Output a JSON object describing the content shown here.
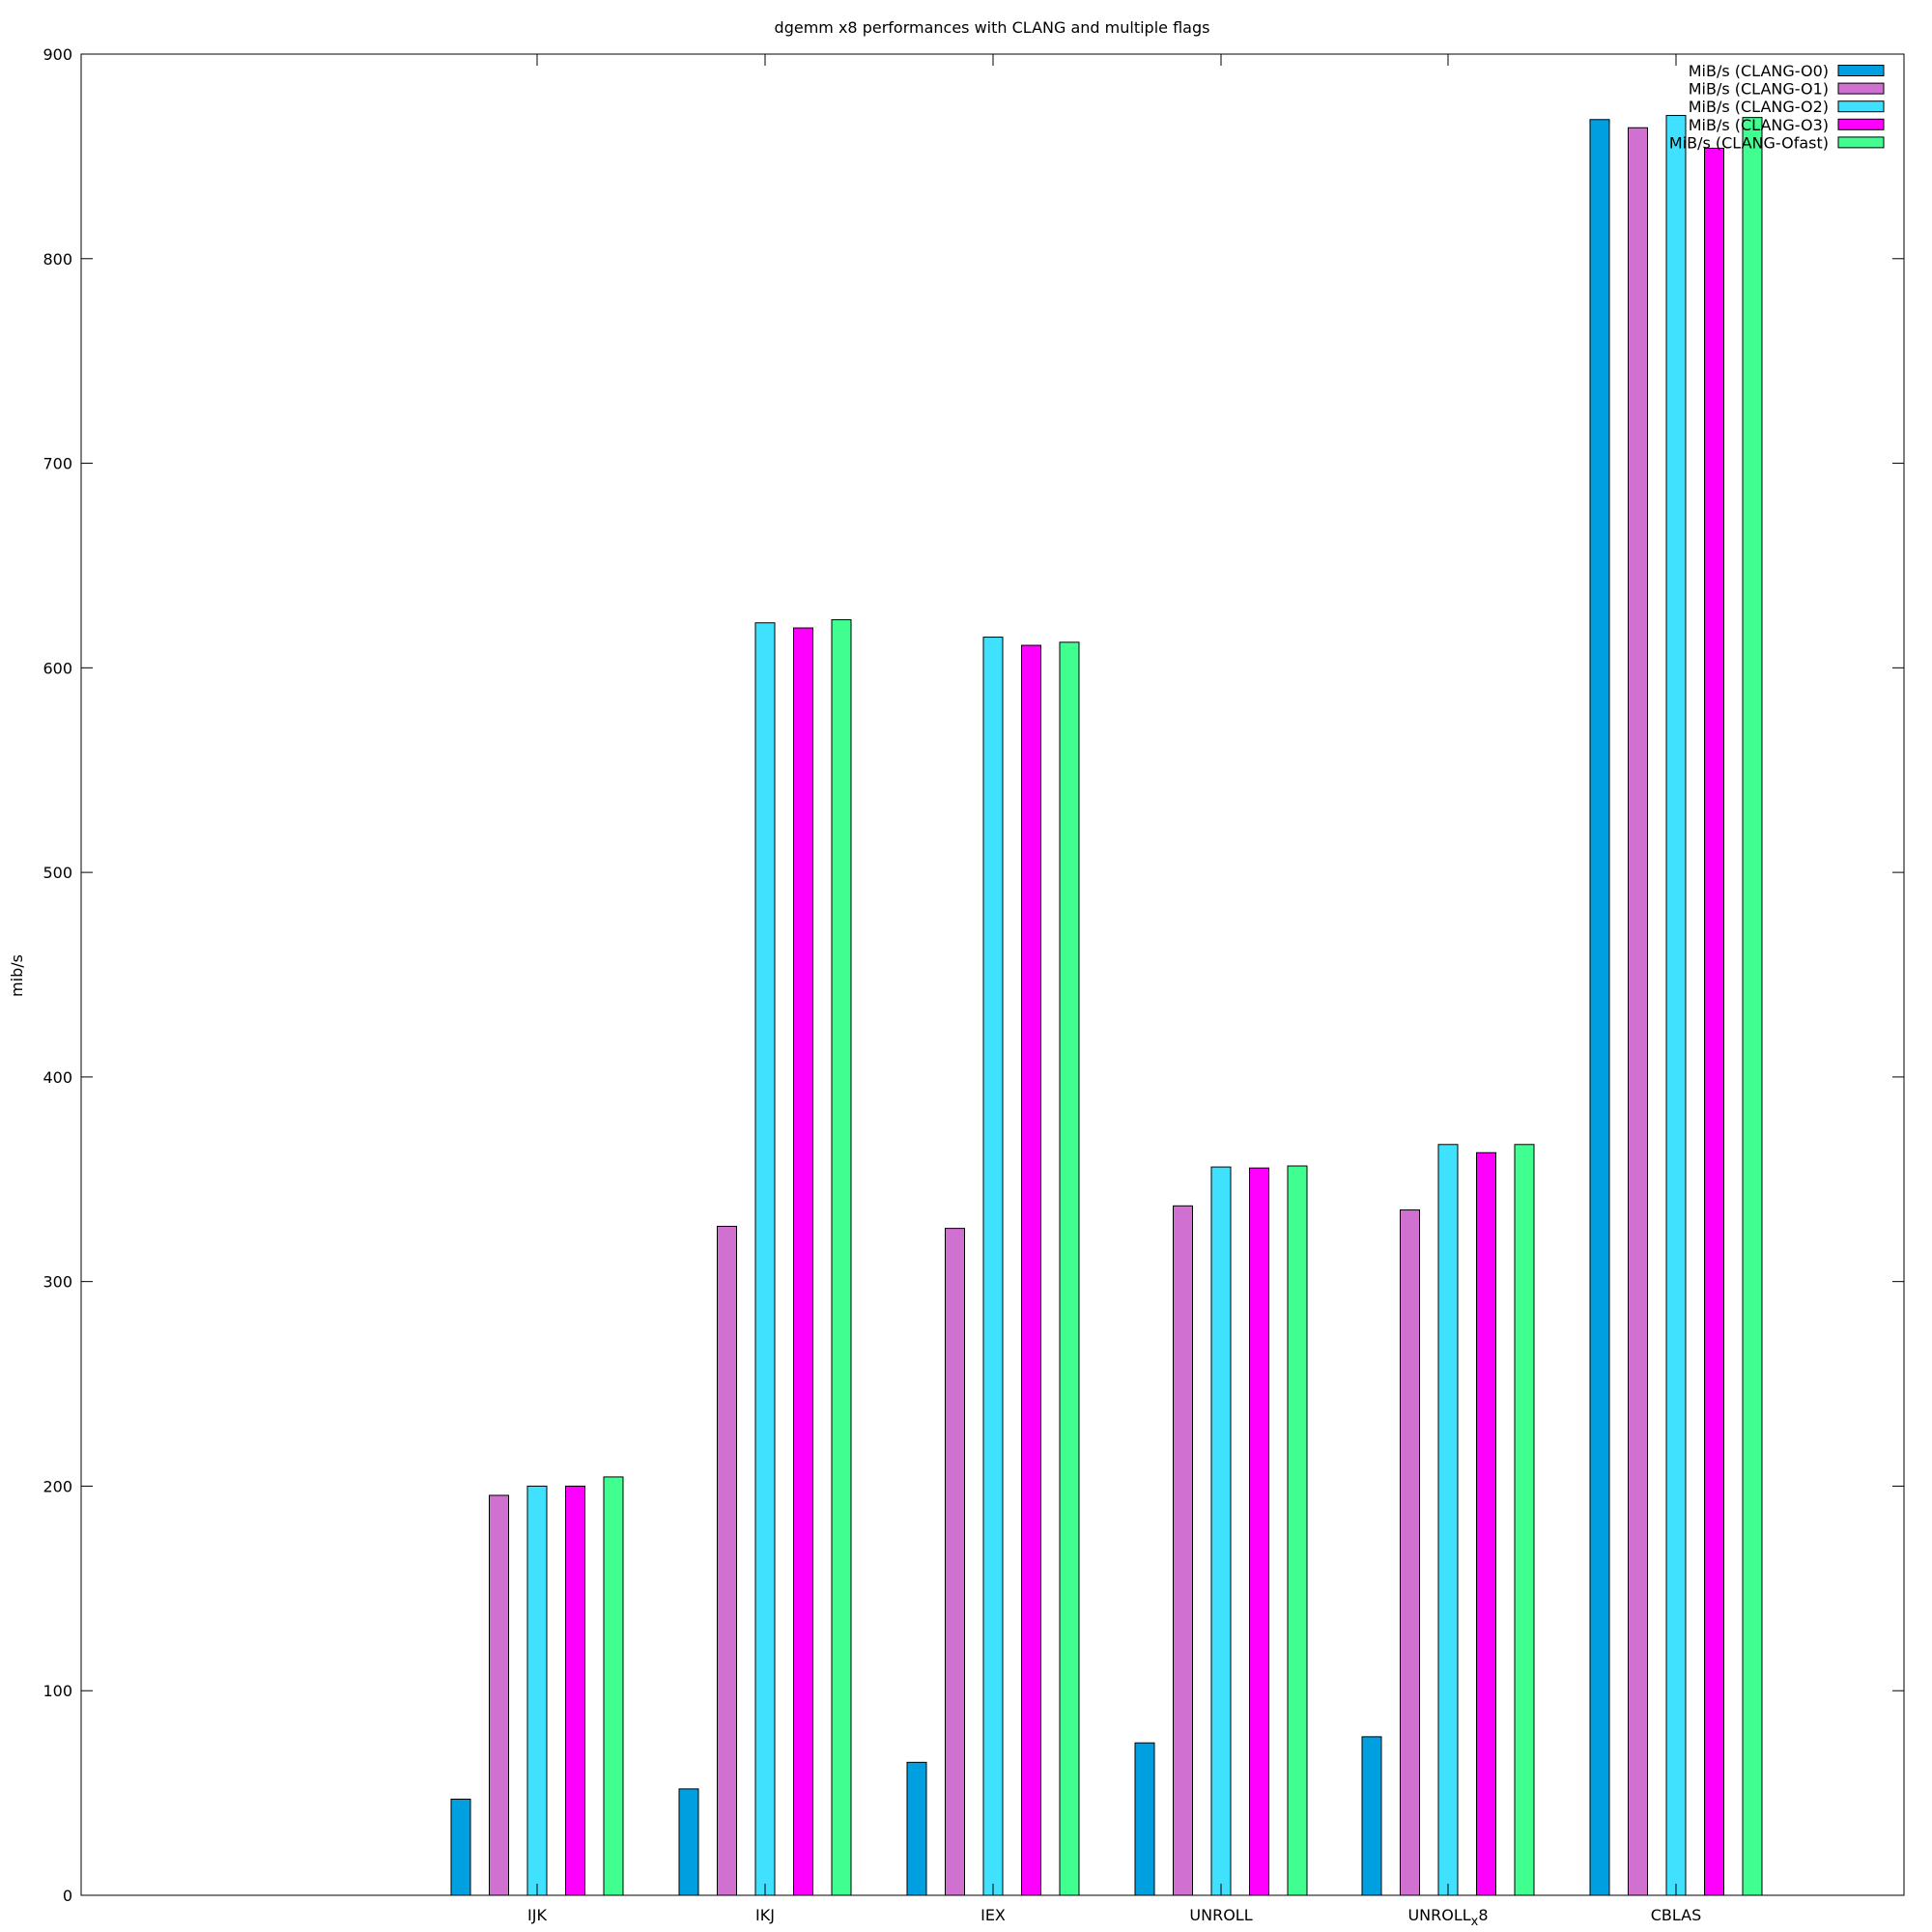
{
  "chart_data": {
    "type": "bar",
    "title": "dgemm x8 performances with CLANG and multiple flags",
    "xlabel": "",
    "ylabel": "mib/s",
    "ylim": [
      0,
      900
    ],
    "yticks": [
      0,
      100,
      200,
      300,
      400,
      500,
      600,
      700,
      800,
      900
    ],
    "categories": [
      "IJK",
      "IKJ",
      "IEX",
      "UNROLL",
      "UNROLL",
      "CBLAS"
    ],
    "category_subscripts": [
      "",
      "",
      "",
      "",
      "x8",
      ""
    ],
    "legend_position": "top-right",
    "grid": false,
    "series": [
      {
        "name": "MiB/s (CLANG-O0)",
        "color": "#009fe0",
        "values": [
          47,
          52,
          65,
          74.5,
          77.5,
          868
        ]
      },
      {
        "name": "MiB/s (CLANG-O1)",
        "color": "#d070d0",
        "values": [
          195.5,
          327,
          326,
          337,
          335,
          864
        ]
      },
      {
        "name": "MiB/s (CLANG-O2)",
        "color": "#40e0ff",
        "values": [
          200,
          622,
          615,
          356,
          367,
          870
        ]
      },
      {
        "name": "MiB/s (CLANG-O3)",
        "color": "#ff00ff",
        "values": [
          200,
          619.5,
          611,
          355.5,
          363,
          854
        ]
      },
      {
        "name": "MiB/s (CLANG-Ofast)",
        "color": "#40ff90",
        "values": [
          204.5,
          623.5,
          612.5,
          356.5,
          367,
          869
        ]
      }
    ]
  }
}
